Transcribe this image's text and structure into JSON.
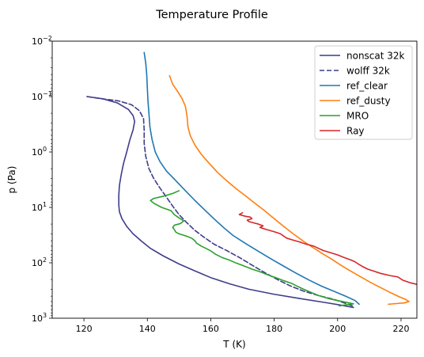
{
  "chart_data": {
    "type": "line",
    "title": "Temperature Profile",
    "xlabel": "T (K)",
    "ylabel": "p (Pa)",
    "xlim": [
      110,
      225
    ],
    "ylim": [
      1000,
      0.01
    ],
    "yscale": "log",
    "xticks": [
      {
        "value": 120,
        "label": "120"
      },
      {
        "value": 140,
        "label": "140"
      },
      {
        "value": 160,
        "label": "160"
      },
      {
        "value": 180,
        "label": "180"
      },
      {
        "value": 200,
        "label": "200"
      },
      {
        "value": 220,
        "label": "220"
      }
    ],
    "yticks": [
      {
        "value": 0.01,
        "base": "10",
        "exp": "−2"
      },
      {
        "value": 0.1,
        "base": "10",
        "exp": "−1"
      },
      {
        "value": 1,
        "base": "10",
        "exp": "0"
      },
      {
        "value": 10,
        "base": "10",
        "exp": "1"
      },
      {
        "value": 100,
        "base": "10",
        "exp": "2"
      },
      {
        "value": 1000,
        "base": "10",
        "exp": "3"
      }
    ],
    "grid": false,
    "legend_position": "top-right",
    "series": [
      {
        "name": "nonscat 32k",
        "color": "#3f3c8a",
        "dash": "solid",
        "points": [
          [
            121.0,
            0.1
          ],
          [
            126.0,
            0.11
          ],
          [
            130.5,
            0.13
          ],
          [
            134.0,
            0.17
          ],
          [
            135.5,
            0.22
          ],
          [
            136.0,
            0.28
          ],
          [
            135.5,
            0.4
          ],
          [
            134.5,
            0.6
          ],
          [
            133.5,
            1.0
          ],
          [
            132.5,
            1.6
          ],
          [
            131.8,
            2.5
          ],
          [
            131.2,
            4.0
          ],
          [
            131.0,
            6.0
          ],
          [
            131.0,
            9.0
          ],
          [
            131.2,
            12
          ],
          [
            132.0,
            16
          ],
          [
            133.5,
            22
          ],
          [
            135.5,
            30
          ],
          [
            138.0,
            40
          ],
          [
            141.0,
            55
          ],
          [
            145.0,
            75
          ],
          [
            150.0,
            105
          ],
          [
            155.0,
            140
          ],
          [
            160.0,
            185
          ],
          [
            166.0,
            240
          ],
          [
            172.0,
            300
          ],
          [
            180.0,
            370
          ],
          [
            188.0,
            440
          ],
          [
            196.0,
            520
          ],
          [
            201.0,
            580
          ],
          [
            205.0,
            640
          ]
        ]
      },
      {
        "name": "wolff 32k",
        "color": "#3f3c8a",
        "dash": "dashed",
        "points": [
          [
            121.0,
            0.1
          ],
          [
            126.0,
            0.11
          ],
          [
            131.0,
            0.12
          ],
          [
            135.0,
            0.14
          ],
          [
            137.5,
            0.18
          ],
          [
            138.8,
            0.25
          ],
          [
            139.0,
            0.4
          ],
          [
            139.0,
            0.7
          ],
          [
            139.5,
            1.2
          ],
          [
            140.5,
            2.0
          ],
          [
            142.0,
            3.0
          ],
          [
            144.0,
            4.5
          ],
          [
            146.0,
            6.5
          ],
          [
            148.0,
            9.5
          ],
          [
            150.0,
            13.5
          ],
          [
            152.5,
            19
          ],
          [
            155.0,
            26
          ],
          [
            158.0,
            35
          ],
          [
            161.0,
            46
          ],
          [
            165.0,
            60
          ],
          [
            169.0,
            80
          ],
          [
            173.0,
            110
          ],
          [
            177.0,
            150
          ],
          [
            181.0,
            200
          ],
          [
            185.0,
            260
          ],
          [
            189.0,
            320
          ],
          [
            194.0,
            390
          ],
          [
            199.0,
            460
          ],
          [
            202.5,
            540
          ],
          [
            205.0,
            610
          ]
        ]
      },
      {
        "name": "ref_clear",
        "color": "#1f77b4",
        "dash": "solid",
        "points": [
          [
            139.0,
            0.016
          ],
          [
            139.5,
            0.025
          ],
          [
            139.8,
            0.04
          ],
          [
            140.0,
            0.07
          ],
          [
            140.2,
            0.12
          ],
          [
            140.5,
            0.2
          ],
          [
            140.8,
            0.35
          ],
          [
            141.5,
            0.6
          ],
          [
            142.5,
            1.0
          ],
          [
            144.0,
            1.5
          ],
          [
            146.0,
            2.2
          ],
          [
            149.0,
            3.3
          ],
          [
            152.0,
            5.0
          ],
          [
            155.0,
            7.5
          ],
          [
            158.0,
            11
          ],
          [
            161.0,
            16
          ],
          [
            164.0,
            23
          ],
          [
            167.0,
            32
          ],
          [
            171.0,
            45
          ],
          [
            175.0,
            62
          ],
          [
            179.0,
            85
          ],
          [
            183.0,
            115
          ],
          [
            187.0,
            155
          ],
          [
            191.0,
            205
          ],
          [
            195.0,
            265
          ],
          [
            199.0,
            330
          ],
          [
            202.5,
            400
          ],
          [
            205.5,
            480
          ],
          [
            206.8,
            560
          ]
        ]
      },
      {
        "name": "ref_dusty",
        "color": "#ff7f0e",
        "dash": "solid",
        "points": [
          [
            147.0,
            0.042
          ],
          [
            148.0,
            0.06
          ],
          [
            149.5,
            0.08
          ],
          [
            151.0,
            0.11
          ],
          [
            152.0,
            0.15
          ],
          [
            152.5,
            0.22
          ],
          [
            152.8,
            0.35
          ],
          [
            153.5,
            0.5
          ],
          [
            155.0,
            0.75
          ],
          [
            157.0,
            1.1
          ],
          [
            159.5,
            1.6
          ],
          [
            162.0,
            2.3
          ],
          [
            165.0,
            3.3
          ],
          [
            168.0,
            4.6
          ],
          [
            171.0,
            6.2
          ],
          [
            174.0,
            8.5
          ],
          [
            177.0,
            11.5
          ],
          [
            180.0,
            16
          ],
          [
            183.0,
            22
          ],
          [
            186.0,
            30
          ],
          [
            189.0,
            40
          ],
          [
            192.0,
            52
          ],
          [
            195.0,
            67
          ],
          [
            198.0,
            85
          ],
          [
            201.0,
            110
          ],
          [
            204.0,
            140
          ],
          [
            207.0,
            175
          ],
          [
            210.0,
            220
          ],
          [
            213.0,
            270
          ],
          [
            216.0,
            330
          ],
          [
            219.0,
            400
          ],
          [
            221.5,
            460
          ],
          [
            222.5,
            500
          ],
          [
            221.0,
            530
          ],
          [
            216.0,
            560
          ]
        ]
      },
      {
        "name": "MRO",
        "color": "#2ca02c",
        "dash": "solid",
        "points": [
          [
            150.0,
            5.0
          ],
          [
            148.0,
            5.6
          ],
          [
            145.0,
            6.3
          ],
          [
            142.0,
            6.9
          ],
          [
            141.0,
            7.5
          ],
          [
            142.0,
            8.4
          ],
          [
            144.5,
            10.0
          ],
          [
            147.5,
            11.5
          ],
          [
            148.5,
            13.5
          ],
          [
            150.0,
            15.5
          ],
          [
            151.5,
            17.5
          ],
          [
            150.5,
            19.5
          ],
          [
            148.5,
            21.0
          ],
          [
            148.0,
            23.0
          ],
          [
            148.5,
            25.0
          ],
          [
            149.0,
            28.0
          ],
          [
            150.0,
            30.0
          ],
          [
            152.0,
            32.5
          ],
          [
            154.0,
            36.0
          ],
          [
            155.0,
            40.0
          ],
          [
            155.5,
            44.0
          ],
          [
            157.0,
            50.0
          ],
          [
            158.5,
            55.0
          ],
          [
            160.0,
            61.0
          ],
          [
            161.5,
            70.0
          ],
          [
            163.5,
            80.0
          ],
          [
            166.0,
            90.0
          ],
          [
            168.0,
            101
          ],
          [
            170.5,
            114
          ],
          [
            173.0,
            130
          ],
          [
            175.5,
            145
          ],
          [
            178.0,
            165
          ],
          [
            180.5,
            185
          ],
          [
            183.0,
            210
          ],
          [
            185.5,
            235
          ],
          [
            187.0,
            260
          ],
          [
            189.0,
            295
          ],
          [
            191.5,
            340
          ],
          [
            194.0,
            390
          ],
          [
            197.0,
            440
          ],
          [
            200.0,
            480
          ],
          [
            203.0,
            520
          ],
          [
            205.0,
            550
          ],
          [
            202.0,
            580
          ],
          [
            200.5,
            600
          ]
        ]
      },
      {
        "name": "Ray",
        "color": "#d62728",
        "dash": "solid",
        "points": [
          [
            170.0,
            12.5
          ],
          [
            169.0,
            13.5
          ],
          [
            171.0,
            14.5
          ],
          [
            172.5,
            15.0
          ],
          [
            173.0,
            16.0
          ],
          [
            171.5,
            17.0
          ],
          [
            172.0,
            18.0
          ],
          [
            173.5,
            19.0
          ],
          [
            175.0,
            20.0
          ],
          [
            176.5,
            21.5
          ],
          [
            175.5,
            23.0
          ],
          [
            177.5,
            25.0
          ],
          [
            180.0,
            27.5
          ],
          [
            182.0,
            30.0
          ],
          [
            183.0,
            33.0
          ],
          [
            184.0,
            36.0
          ],
          [
            186.0,
            39.0
          ],
          [
            188.0,
            42.0
          ],
          [
            190.0,
            46.0
          ],
          [
            192.5,
            50.0
          ],
          [
            194.0,
            55.0
          ],
          [
            195.5,
            60.0
          ],
          [
            197.5,
            65.0
          ],
          [
            200.0,
            72.0
          ],
          [
            202.0,
            80.0
          ],
          [
            204.0,
            88.0
          ],
          [
            205.5,
            96.0
          ],
          [
            206.5,
            105
          ],
          [
            208.0,
            118
          ],
          [
            209.5,
            130
          ],
          [
            211.5,
            142
          ],
          [
            213.5,
            155
          ],
          [
            216.5,
            170
          ],
          [
            219.0,
            180
          ],
          [
            220.5,
            205
          ],
          [
            223.0,
            230
          ],
          [
            225.0,
            245
          ]
        ]
      }
    ]
  }
}
